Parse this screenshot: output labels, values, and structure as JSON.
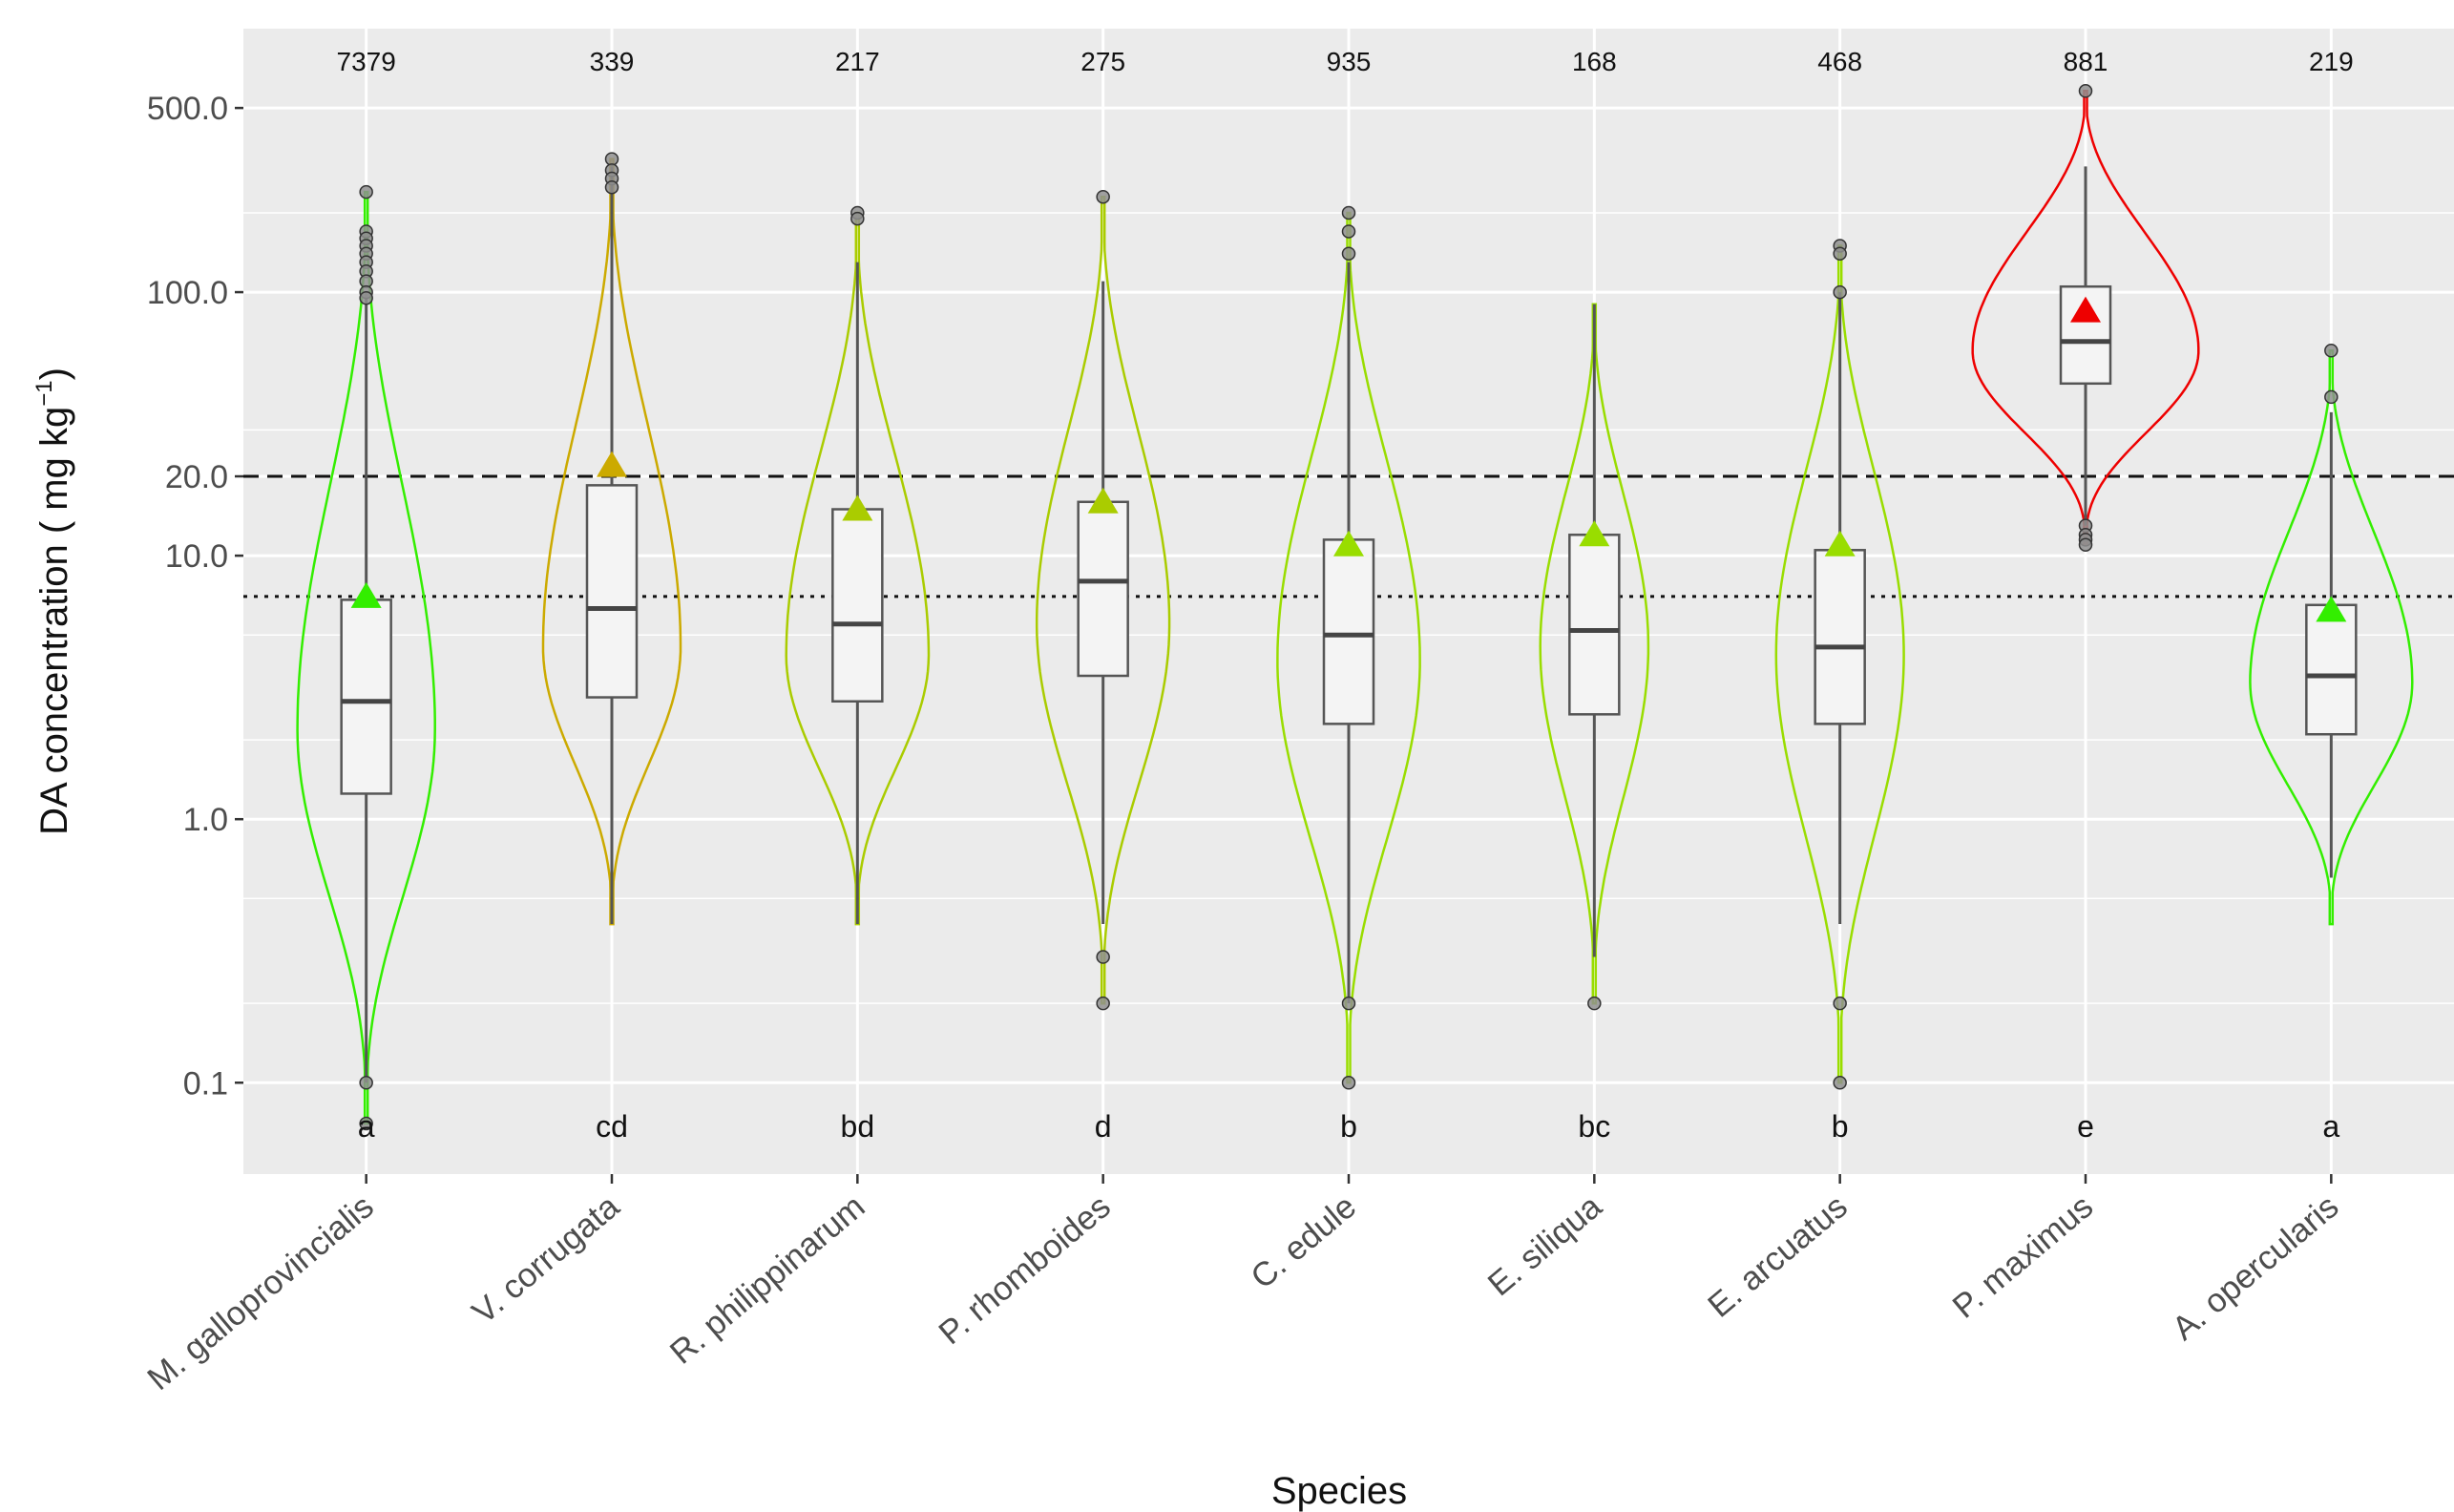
{
  "chart_data": {
    "type": "violin",
    "xlabel": "Species",
    "ylabel": "DA concentration ( mg kg",
    "ylabel_exponent": "−1",
    "ylabel_close": ")",
    "yscale": "log10",
    "ylim": [
      0.045,
      1000
    ],
    "y_ticks": [
      {
        "value": 0.1,
        "label": "0.1"
      },
      {
        "value": 1.0,
        "label": "1.0"
      },
      {
        "value": 10.0,
        "label": "10.0"
      },
      {
        "value": 20.0,
        "label": "20.0"
      },
      {
        "value": 100.0,
        "label": "100.0"
      },
      {
        "value": 500.0,
        "label": "500.0"
      }
    ],
    "reference_lines": [
      {
        "value": 20,
        "style": "dashed"
      },
      {
        "value": 7,
        "style": "dotted"
      }
    ],
    "colors": {
      "panel": "#ebebeb",
      "grid": "#ffffff",
      "box_fill": "#f4f4f4",
      "box_line": "#555555"
    },
    "species": [
      {
        "name": "M. galloprovincialis",
        "n": "7379",
        "group": "a",
        "color": "#33ee00",
        "box": {
          "q1": 1.25,
          "median": 2.8,
          "q3": 6.8,
          "lower": 0.1,
          "upper": 100
        },
        "mean": 7.0,
        "min": 0.07,
        "max": 240,
        "mode": 2.2,
        "width": 0.28,
        "outliers": [
          0.07,
          0.1,
          240,
          170,
          160,
          150,
          140,
          130,
          120,
          110,
          100,
          95
        ]
      },
      {
        "name": "V. corrugata",
        "n": "339",
        "group": "cd",
        "color": "#ccaa00",
        "box": {
          "q1": 2.9,
          "median": 6.3,
          "q3": 18.5,
          "lower": 0.4,
          "upper": 300
        },
        "mean": 22,
        "min": 0.4,
        "max": 320,
        "mode": 4.5,
        "width": 0.28,
        "outliers": [
          320,
          290,
          270,
          250
        ]
      },
      {
        "name": "R. philippinarum",
        "n": "217",
        "group": "bd",
        "color": "#aacc00",
        "box": {
          "q1": 2.8,
          "median": 5.5,
          "q3": 15,
          "lower": 0.4,
          "upper": 130
        },
        "mean": 15,
        "min": 0.4,
        "max": 200,
        "mode": 4.2,
        "width": 0.29,
        "outliers": [
          200,
          190
        ]
      },
      {
        "name": "P. rhomboides",
        "n": "275",
        "group": "d",
        "color": "#aacc00",
        "box": {
          "q1": 3.5,
          "median": 8.0,
          "q3": 16,
          "lower": 0.4,
          "upper": 110
        },
        "mean": 16,
        "min": 0.2,
        "max": 230,
        "mode": 5.5,
        "width": 0.27,
        "outliers": [
          230,
          0.3,
          0.2
        ]
      },
      {
        "name": "C. edule",
        "n": "935",
        "group": "b",
        "color": "#99dd00",
        "box": {
          "q1": 2.3,
          "median": 5.0,
          "q3": 11.5,
          "lower": 0.2,
          "upper": 130
        },
        "mean": 11,
        "min": 0.1,
        "max": 200,
        "mode": 4.0,
        "width": 0.29,
        "outliers": [
          200,
          170,
          140,
          0.2,
          0.1
        ]
      },
      {
        "name": "E. siliqua",
        "n": "168",
        "group": "bc",
        "color": "#99dd00",
        "box": {
          "q1": 2.5,
          "median": 5.2,
          "q3": 12,
          "lower": 0.3,
          "upper": 90
        },
        "mean": 12,
        "min": 0.2,
        "max": 90,
        "mode": 4.5,
        "width": 0.22,
        "outliers": [
          0.2
        ]
      },
      {
        "name": "E. arcuatus",
        "n": "468",
        "group": "b",
        "color": "#99dd00",
        "box": {
          "q1": 2.3,
          "median": 4.5,
          "q3": 10.5,
          "lower": 0.4,
          "upper": 100
        },
        "mean": 11,
        "min": 0.1,
        "max": 150,
        "mode": 4.2,
        "width": 0.26,
        "outliers": [
          150,
          140,
          100,
          0.2,
          0.1
        ]
      },
      {
        "name": "P. maximus",
        "n": "881",
        "group": "e",
        "color": "#ee0000",
        "box": {
          "q1": 45,
          "median": 65,
          "q3": 105,
          "lower": 13,
          "upper": 300
        },
        "mean": 85,
        "min": 11,
        "max": 580,
        "mode": 60,
        "width": 0.46,
        "outliers": [
          580,
          13,
          12,
          11.5,
          11
        ]
      },
      {
        "name": "A. opercularis",
        "n": "219",
        "group": "a",
        "color": "#33ee00",
        "box": {
          "q1": 2.1,
          "median": 3.5,
          "q3": 6.5,
          "lower": 0.6,
          "upper": 35
        },
        "mean": 6.2,
        "min": 0.4,
        "max": 60,
        "mode": 3.3,
        "width": 0.33,
        "outliers": [
          60,
          40
        ]
      }
    ]
  }
}
